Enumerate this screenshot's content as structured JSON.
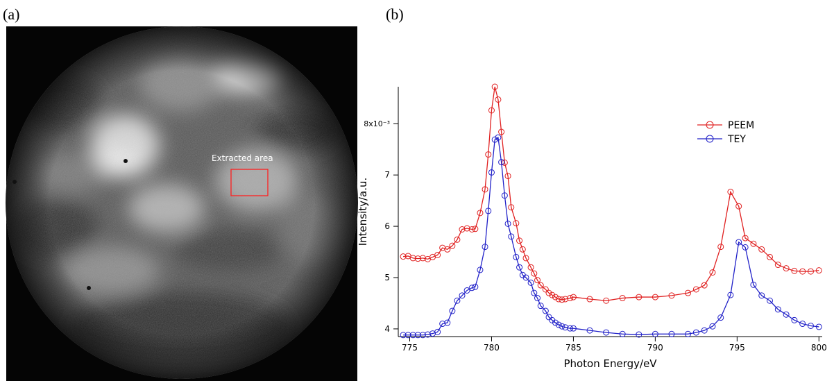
{
  "panels": {
    "a": "(a)",
    "b": "(b)"
  },
  "image": {
    "annotation": "Extracted area"
  },
  "chart_data": {
    "type": "line",
    "xlabel": "Photon Energy/eV",
    "ylabel": "Intensity/a.u.",
    "xlim": [
      774.3,
      800.2
    ],
    "xticks": [
      775,
      780,
      785,
      790,
      795,
      800
    ],
    "ylim": [
      3.85,
      8.72
    ],
    "yticks": [
      4,
      5,
      6,
      7,
      {
        "value": 8,
        "label": "8x10⁻³"
      }
    ],
    "legend": "upper right",
    "x": [
      774.6,
      774.9,
      775.2,
      775.5,
      775.8,
      776.1,
      776.4,
      776.7,
      777.0,
      777.3,
      777.6,
      777.9,
      778.2,
      778.5,
      778.8,
      779.0,
      779.3,
      779.6,
      779.8,
      780.0,
      780.2,
      780.4,
      780.6,
      780.8,
      781.0,
      781.2,
      781.5,
      781.7,
      781.9,
      782.1,
      782.4,
      782.6,
      782.8,
      783.0,
      783.3,
      783.5,
      783.7,
      783.9,
      784.1,
      784.3,
      784.5,
      784.8,
      785.0,
      786.0,
      787.0,
      788.0,
      789.0,
      790.0,
      791.0,
      792.0,
      792.5,
      793.0,
      793.5,
      794.0,
      794.6,
      795.1,
      795.5,
      796.0,
      796.5,
      797.0,
      797.5,
      798.0,
      798.5,
      799.0,
      799.5,
      800.0
    ],
    "series": [
      {
        "name": "PEEM",
        "color": "#e02020",
        "values": [
          5.41,
          5.42,
          5.38,
          5.37,
          5.38,
          5.36,
          5.4,
          5.44,
          5.58,
          5.55,
          5.62,
          5.74,
          5.94,
          5.96,
          5.94,
          5.95,
          6.26,
          6.72,
          7.4,
          8.26,
          8.72,
          8.47,
          7.84,
          7.24,
          6.98,
          6.37,
          6.06,
          5.72,
          5.55,
          5.38,
          5.2,
          5.08,
          4.95,
          4.85,
          4.77,
          4.7,
          4.66,
          4.62,
          4.58,
          4.57,
          4.58,
          4.6,
          4.62,
          4.58,
          4.55,
          4.6,
          4.62,
          4.62,
          4.65,
          4.7,
          4.77,
          4.85,
          5.1,
          5.6,
          6.67,
          6.39,
          5.77,
          5.66,
          5.55,
          5.4,
          5.25,
          5.18,
          5.13,
          5.12,
          5.12,
          5.14
        ]
      },
      {
        "name": "TEY",
        "color": "#2020c8",
        "values": [
          3.88,
          3.88,
          3.88,
          3.88,
          3.88,
          3.89,
          3.91,
          3.94,
          4.1,
          4.12,
          4.35,
          4.55,
          4.65,
          4.75,
          4.8,
          4.82,
          5.15,
          5.6,
          6.3,
          7.05,
          7.69,
          7.73,
          7.25,
          6.6,
          6.05,
          5.8,
          5.4,
          5.2,
          5.05,
          5.0,
          4.9,
          4.7,
          4.6,
          4.45,
          4.35,
          4.23,
          4.17,
          4.12,
          4.08,
          4.05,
          4.03,
          4.01,
          4.01,
          3.97,
          3.93,
          3.9,
          3.89,
          3.9,
          3.9,
          3.9,
          3.93,
          3.97,
          4.05,
          4.22,
          4.66,
          5.69,
          5.59,
          4.86,
          4.65,
          4.55,
          4.38,
          4.28,
          4.17,
          4.1,
          4.06,
          4.04
        ]
      }
    ]
  }
}
